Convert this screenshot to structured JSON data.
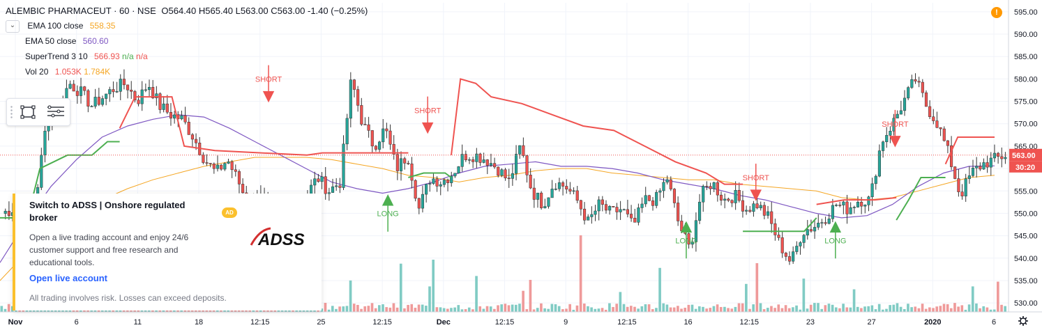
{
  "header": {
    "symbol": "ALEMBIC PHARMACEUT · 60 · NSE",
    "ohlc": "O564.40 H565.40 L563.00 C563.00 -1.40 (−0.25%)"
  },
  "indicators": [
    {
      "name": "EMA 100 close",
      "value": "558.35",
      "color": "#f5a623"
    },
    {
      "name": "EMA 50 close",
      "value": "560.60",
      "color": "#7e57c2"
    },
    {
      "name": "SuperTrend 3 10",
      "value": "566.93",
      "extra1": "n/a",
      "extra2": "n/a",
      "color": "#ef5350",
      "extra_color": "#4caf50"
    },
    {
      "name": "Vol 20",
      "value": "1.053K",
      "value2": "1.784K",
      "color": "#ef5350",
      "color2": "#f5a623"
    }
  ],
  "price_label": {
    "price": "563.00",
    "countdown": "30:20"
  },
  "warning_icon": "!",
  "ad": {
    "title": "Switch to ADSS | Onshore regulated broker",
    "badge": "AD",
    "body": "Open a live trading account and enjoy 24/6 customer support and free research and educational tools.",
    "link": "Open live account",
    "disclaimer": "All trading involves risk. Losses can exceed deposits.",
    "logo_text": "ADSS"
  },
  "chart_data": {
    "type": "candlestick",
    "ylim": [
      528,
      597
    ],
    "y_ticks": [
      530,
      535,
      540,
      545,
      550,
      555,
      560,
      565,
      570,
      575,
      580,
      585,
      590,
      595
    ],
    "y_tick_labels": [
      "530.00",
      "535.00",
      "540.00",
      "545.00",
      "550.00",
      "555.00",
      "560.00",
      "565.00",
      "570.00",
      "575.00",
      "580.00",
      "585.00",
      "590.00",
      "595.00"
    ],
    "x_labels": [
      "Nov",
      "6",
      "11",
      "18",
      "12:15",
      "25",
      "12:15",
      "Dec",
      "12:15",
      "9",
      "12:15",
      "16",
      "12:15",
      "23",
      "27",
      "2020",
      "6"
    ],
    "last_price": 563.0,
    "candle_anchors": [
      550,
      551,
      549,
      553,
      571,
      574,
      579,
      577,
      574,
      576,
      578,
      579,
      575,
      579,
      574,
      572,
      571,
      567,
      562,
      559,
      562,
      557,
      551,
      555,
      546,
      549,
      550,
      554,
      558,
      555,
      557,
      580,
      570,
      565,
      569,
      560,
      563,
      551,
      558,
      557,
      559,
      563,
      563,
      562,
      560,
      557,
      565,
      555,
      552,
      557,
      556,
      553,
      548,
      552,
      550,
      551,
      547,
      553,
      553,
      558,
      548,
      542,
      554,
      557,
      553,
      554,
      551,
      552,
      549,
      543,
      539,
      546,
      547,
      549,
      552,
      551,
      553,
      553,
      566,
      570,
      575,
      580,
      574,
      570,
      563,
      554,
      559,
      561,
      562,
      563
    ],
    "ema100": [
      535,
      541,
      546,
      550,
      553,
      555.5,
      557.5,
      559,
      560.5,
      561.5,
      562.5,
      562.5,
      562.5,
      562,
      561,
      560,
      558.5,
      558,
      557,
      558,
      558.5,
      559.5,
      560,
      560,
      559,
      558.5,
      558,
      557.5,
      557.5,
      556.5,
      556,
      555.5,
      555,
      553.5,
      553,
      553.5,
      555,
      556.5,
      558,
      558.5
    ],
    "ema50": [
      539,
      548,
      556,
      562,
      567,
      569.5,
      571,
      572,
      571.5,
      569,
      566,
      563,
      560,
      557,
      555.5,
      554.5,
      555.5,
      557,
      559,
      560.5,
      561,
      561.5,
      560.5,
      560.5,
      560,
      559,
      557.5,
      556.5,
      555.5,
      554,
      553,
      551.5,
      550,
      549,
      549.5,
      552,
      556,
      559,
      560.5,
      560.6
    ],
    "supertrend": [
      {
        "trend": "up",
        "points": [
          [
            0,
            549
          ],
          [
            0.09,
            549
          ],
          [
            0.13,
            560
          ],
          [
            0.22,
            563
          ],
          [
            0.3,
            563
          ],
          [
            0.35,
            566
          ],
          [
            0.39,
            566
          ]
        ]
      },
      {
        "trend": "down",
        "points": [
          [
            0.39,
            569
          ],
          [
            0.44,
            576
          ],
          [
            0.5,
            576
          ],
          [
            0.56,
            576
          ],
          [
            0.6,
            565
          ],
          [
            0.7,
            564
          ],
          [
            1.0,
            563
          ],
          [
            1.05,
            563.5
          ],
          [
            1.33,
            563.5
          ]
        ]
      },
      {
        "trend": "up",
        "points": [
          [
            1.33,
            558
          ],
          [
            1.38,
            559
          ],
          [
            1.45,
            559
          ],
          [
            1.47,
            558
          ]
        ]
      },
      {
        "trend": "down",
        "points": [
          [
            1.47,
            563
          ],
          [
            1.5,
            580
          ],
          [
            1.55,
            579
          ],
          [
            1.6,
            576
          ],
          [
            1.7,
            574.5
          ],
          [
            1.8,
            572
          ],
          [
            1.9,
            569.5
          ],
          [
            2.0,
            568.5
          ],
          [
            2.1,
            565
          ],
          [
            2.2,
            561.5
          ],
          [
            2.3,
            559
          ],
          [
            2.36,
            556.5
          ],
          [
            2.42,
            556.5
          ]
        ]
      },
      {
        "trend": "up",
        "points": [
          [
            2.42,
            546
          ],
          [
            2.5,
            546
          ],
          [
            2.62,
            546
          ],
          [
            2.66,
            549
          ]
        ]
      },
      {
        "trend": "down",
        "points": [
          [
            2.66,
            552
          ],
          [
            2.75,
            553
          ],
          [
            2.85,
            553
          ],
          [
            2.92,
            553.5
          ]
        ]
      },
      {
        "trend": "up",
        "points": [
          [
            2.92,
            548.5
          ],
          [
            2.96,
            553
          ],
          [
            3.0,
            558
          ],
          [
            3.08,
            558
          ]
        ]
      },
      {
        "trend": "down",
        "points": [
          [
            3.08,
            561
          ],
          [
            3.12,
            567
          ],
          [
            3.24,
            567
          ]
        ]
      }
    ],
    "signals": [
      {
        "label": "SHORT",
        "x": 0.27,
        "price": 575,
        "kind": "short"
      },
      {
        "label": "LONG",
        "x": 0.39,
        "price": 554,
        "kind": "long"
      },
      {
        "label": "SHORT",
        "x": 0.43,
        "price": 568,
        "kind": "short"
      },
      {
        "label": "LONG",
        "x": 0.69,
        "price": 548,
        "kind": "long"
      },
      {
        "label": "SHORT",
        "x": 0.76,
        "price": 553,
        "kind": "short"
      },
      {
        "label": "LONG",
        "x": 0.84,
        "price": 548,
        "kind": "long"
      },
      {
        "label": "SHORT",
        "x": 0.9,
        "price": 565,
        "kind": "short"
      }
    ]
  },
  "colors": {
    "up": "#26a69a",
    "down": "#ef5350",
    "grid": "#f0f3fa",
    "axis_text": "#131722",
    "price_line": "#ef5350",
    "label_blue": "#2962ff"
  }
}
